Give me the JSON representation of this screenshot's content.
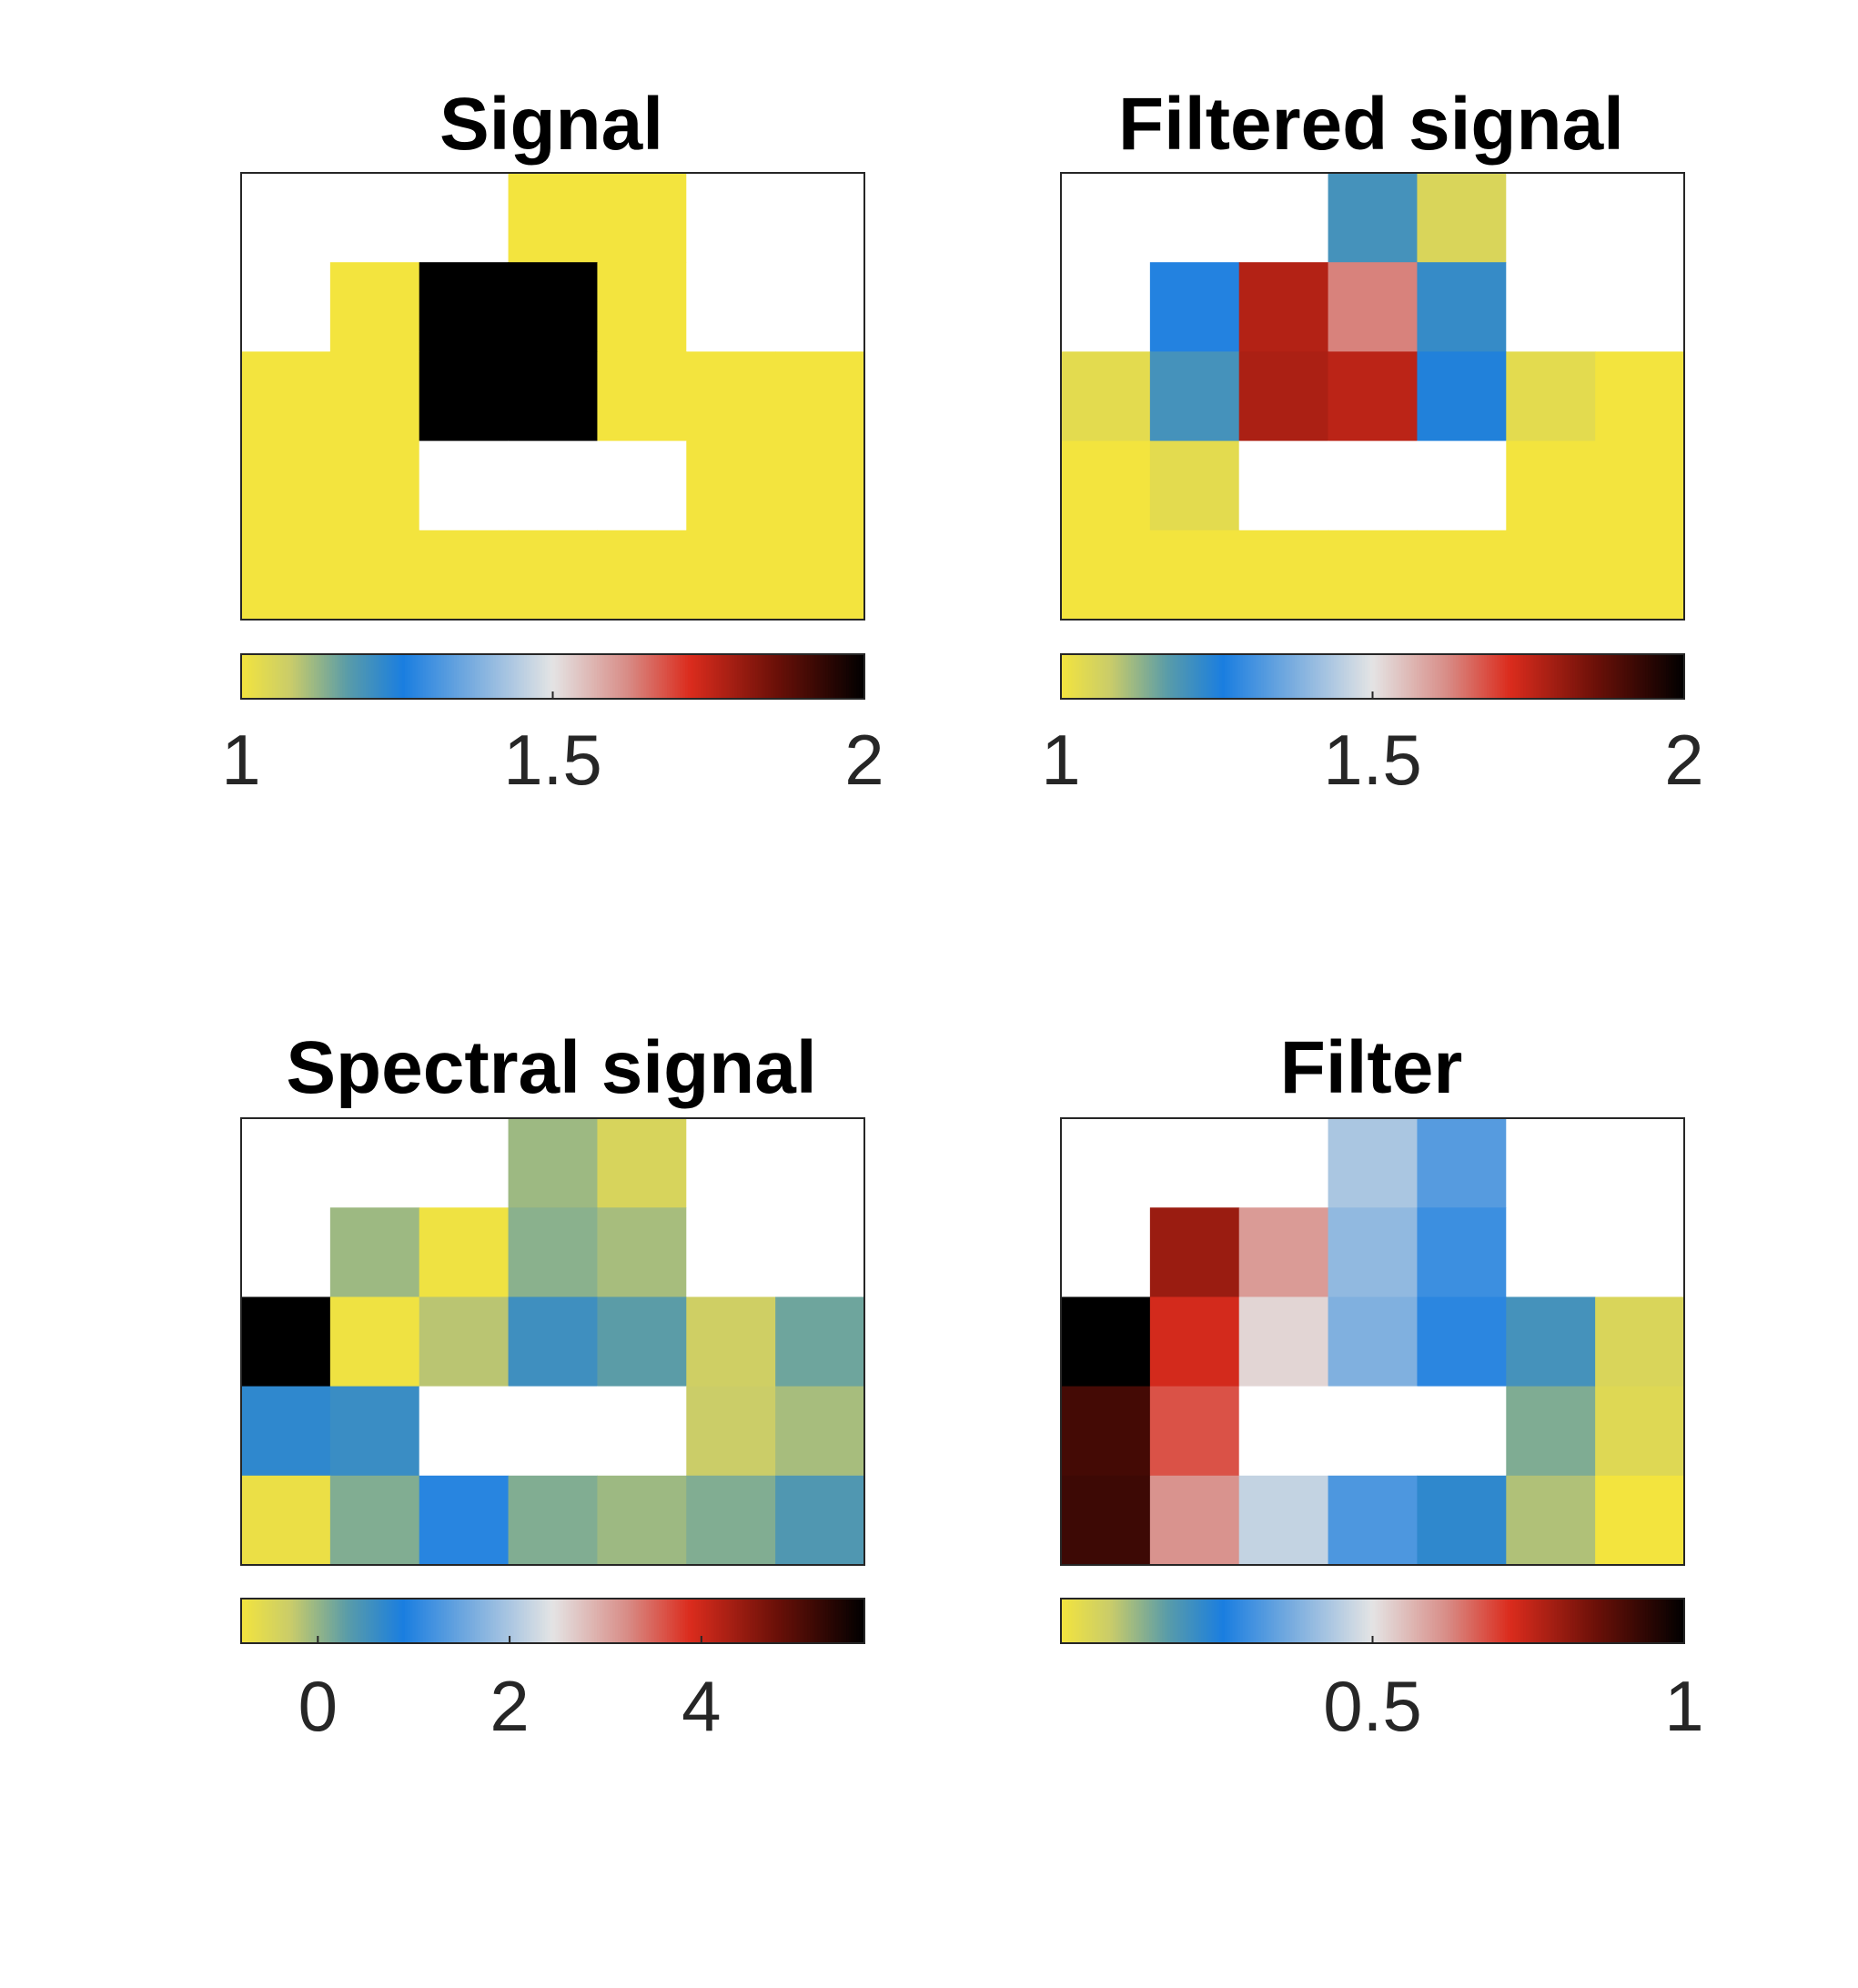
{
  "chart_data": [
    {
      "type": "heatmap",
      "title": "Signal",
      "grid": false,
      "nan_color": "#ffffff",
      "colorbar": {
        "location": "bottom",
        "clim": [
          1,
          2
        ],
        "ticks": [
          1,
          1.5,
          2
        ],
        "tick_labels": [
          "1",
          "1.5",
          "2"
        ]
      },
      "matrix": [
        [
          null,
          null,
          null,
          1,
          1,
          null,
          null
        ],
        [
          null,
          1,
          2,
          2,
          1,
          null,
          null
        ],
        [
          1,
          1,
          2,
          2,
          1,
          1,
          1
        ],
        [
          1,
          1,
          null,
          null,
          null,
          1,
          1
        ],
        [
          1,
          1,
          1,
          1,
          1,
          1,
          1
        ]
      ]
    },
    {
      "type": "heatmap",
      "title": "Filtered signal",
      "grid": false,
      "nan_color": "#ffffff",
      "colorbar": {
        "location": "bottom",
        "clim": [
          1,
          2
        ],
        "ticks": [
          1,
          1.5,
          2
        ],
        "tick_labels": [
          "1",
          "1.5",
          "2"
        ]
      },
      "matrix": [
        [
          null,
          null,
          null,
          1.2,
          1.05,
          null,
          null
        ],
        [
          null,
          1.27,
          1.77,
          1.63,
          1.22,
          null,
          null
        ],
        [
          1.03,
          1.2,
          1.78,
          1.76,
          1.25,
          1.03,
          1
        ],
        [
          1,
          1.03,
          null,
          null,
          null,
          1,
          1
        ],
        [
          1,
          1,
          1,
          1,
          1,
          1,
          1
        ]
      ]
    },
    {
      "type": "heatmap",
      "title": "Spectral signal",
      "grid": false,
      "nan_color": "#ffffff",
      "colorbar": {
        "location": "bottom",
        "clim": [
          -0.8,
          5.7
        ],
        "ticks": [
          0,
          2,
          4
        ],
        "tick_labels": [
          "0",
          "2",
          "4"
        ]
      },
      "matrix": [
        [
          null,
          null,
          null,
          -0.05,
          -0.45,
          null,
          null
        ],
        [
          null,
          -0.05,
          -0.75,
          0.05,
          -0.1,
          null,
          null
        ],
        [
          5.7,
          -0.75,
          -0.2,
          0.55,
          0.3,
          -0.35,
          0.2
        ],
        [
          0.7,
          0.6,
          null,
          null,
          null,
          -0.3,
          -0.1
        ],
        [
          -0.7,
          0.1,
          1,
          0.1,
          -0.05,
          0.1,
          0.4
        ]
      ]
    },
    {
      "type": "heatmap",
      "title": "Filter",
      "grid": false,
      "nan_color": "#ffffff",
      "colorbar": {
        "location": "bottom",
        "clim": [
          0,
          1
        ],
        "ticks": [
          0.5,
          1
        ],
        "tick_labels": [
          "0.5",
          "1"
        ]
      },
      "matrix": [
        [
          null,
          null,
          null,
          0.43,
          0.33,
          null,
          null
        ],
        [
          null,
          0.8,
          0.6,
          0.4,
          0.3,
          null,
          null
        ],
        [
          1,
          0.73,
          0.52,
          0.38,
          0.28,
          0.2,
          0.05
        ],
        [
          0.91,
          0.68,
          null,
          null,
          null,
          0.14,
          0.04
        ],
        [
          0.92,
          0.61,
          0.46,
          0.32,
          0.23,
          0.1,
          0
        ]
      ]
    }
  ],
  "colormap": {
    "name": "yellow-blue-white-red-black",
    "stops": [
      [
        0,
        "#f3e43e"
      ],
      [
        0.08,
        "#c9cc6a"
      ],
      [
        0.17,
        "#5a9ca8"
      ],
      [
        0.26,
        "#1a7ee0"
      ],
      [
        0.37,
        "#78acdf"
      ],
      [
        0.5,
        "#e4e4e4"
      ],
      [
        0.62,
        "#d88c86"
      ],
      [
        0.72,
        "#db2c1d"
      ],
      [
        0.86,
        "#6a1008"
      ],
      [
        1,
        "#000000"
      ]
    ]
  }
}
